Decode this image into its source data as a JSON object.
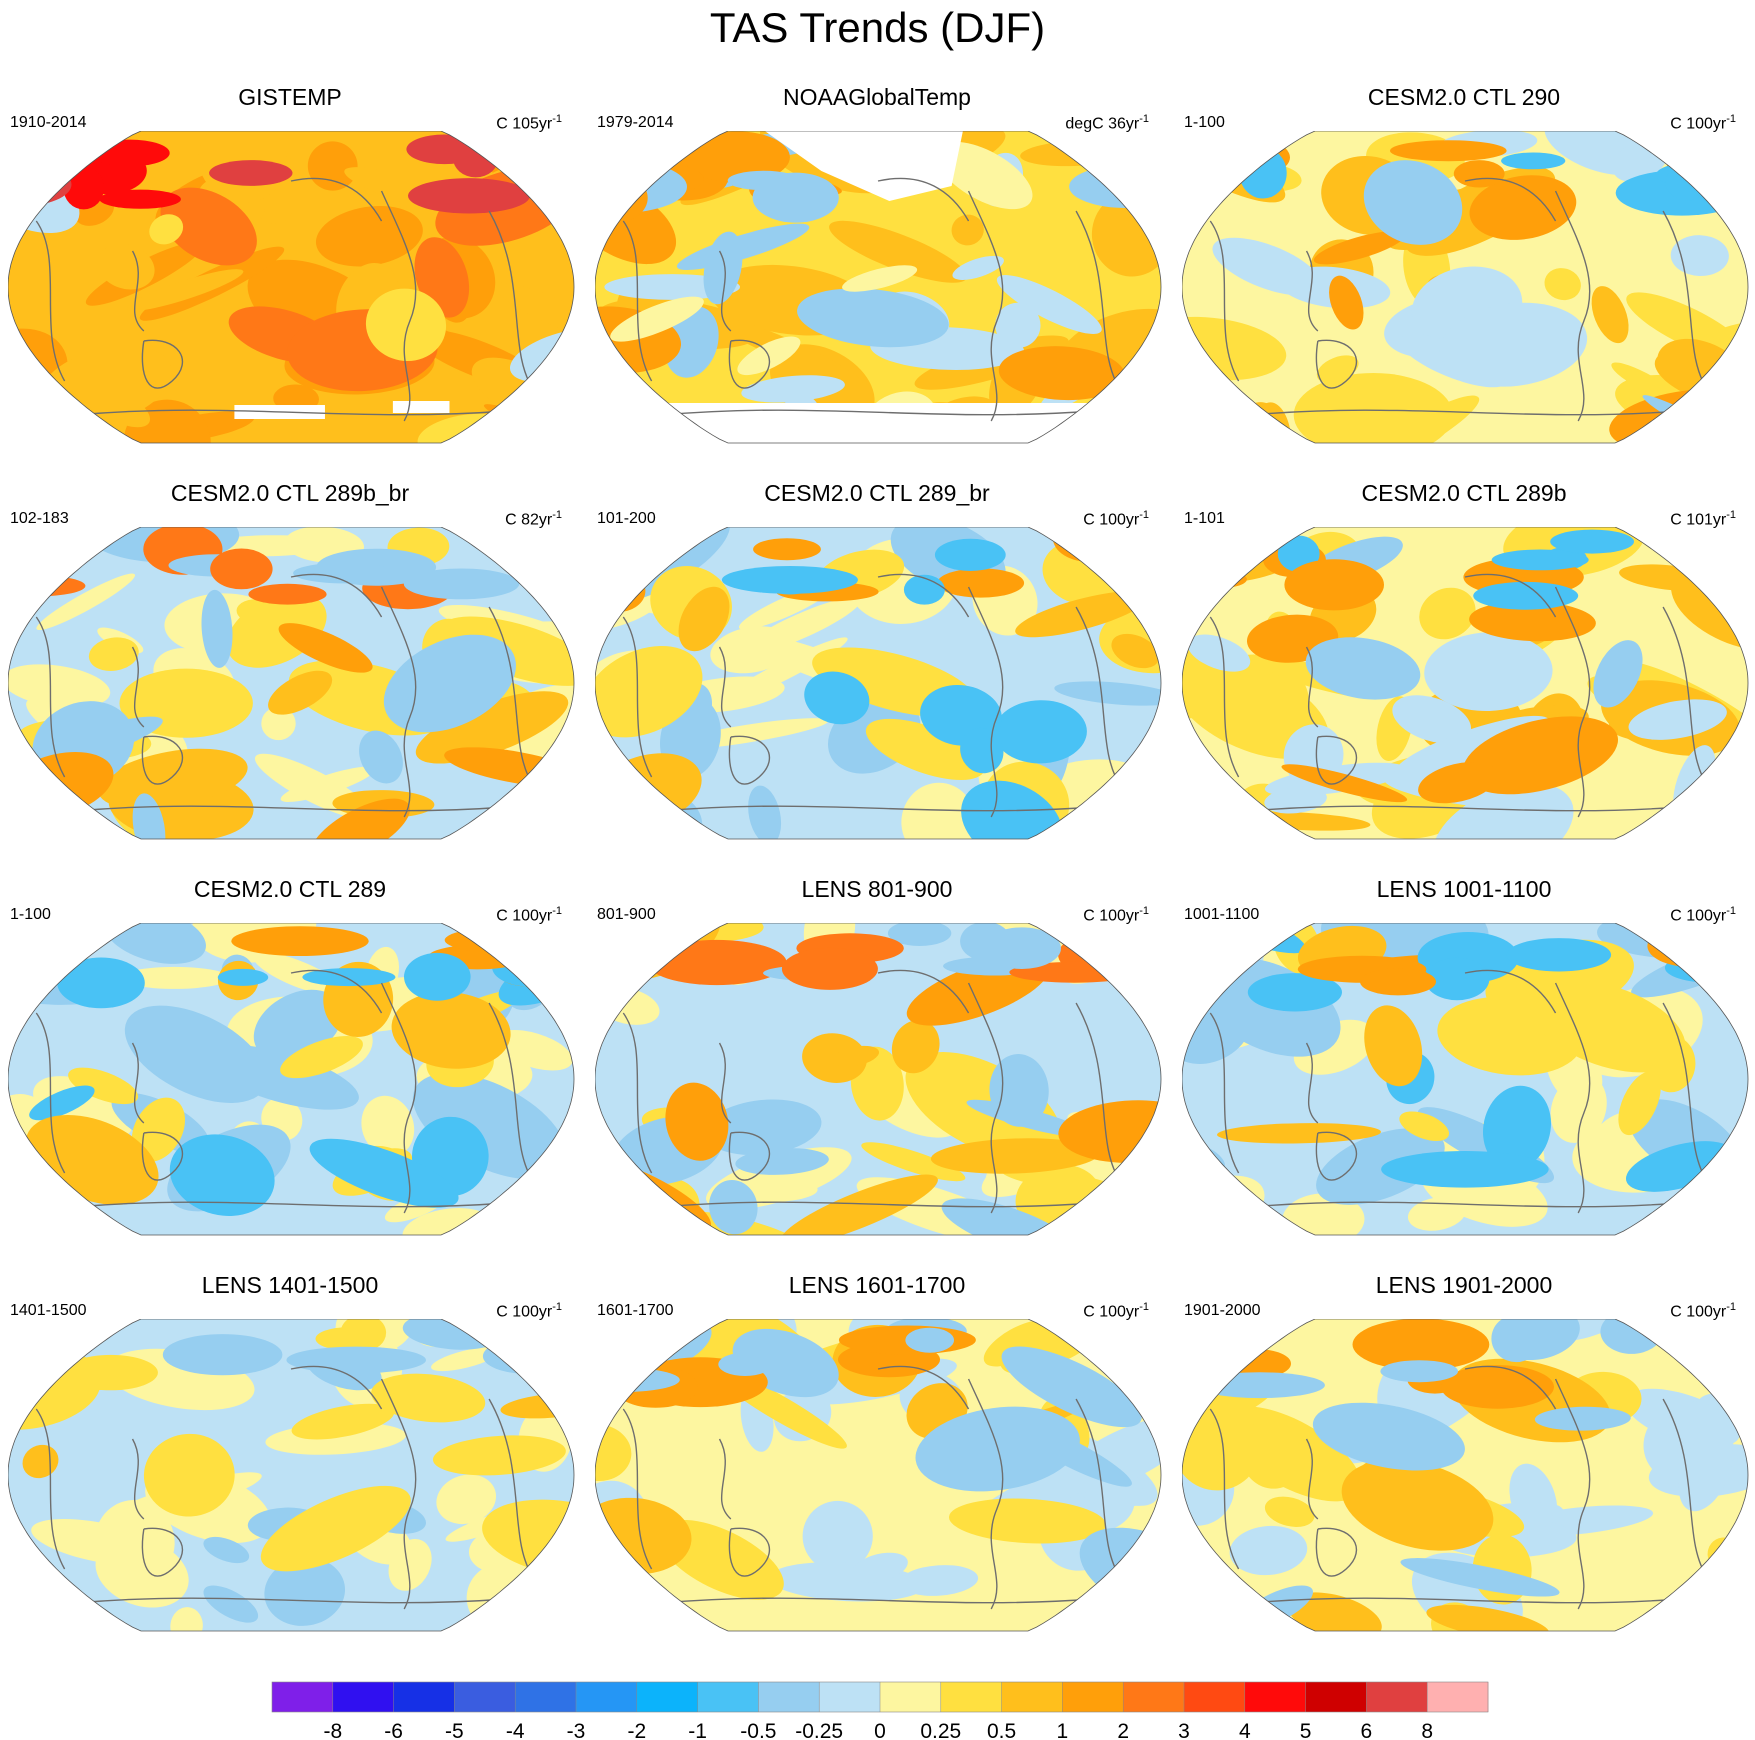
{
  "title": "TAS Trends (DJF)",
  "chart_data": {
    "type": "heatmap",
    "projection": "Robinson (Pacific-centered)",
    "title": "TAS Trends (DJF)",
    "panels": [
      {
        "title": "GISTEMP",
        "period": "1910-2014",
        "units_prefix": "C 105yr",
        "units_exp": "-1",
        "scheme": "warm",
        "missing_antarctic": true
      },
      {
        "title": "NOAAGlobalTemp",
        "period": "1979-2014",
        "units_prefix": "degC 36yr",
        "units_exp": "-1",
        "scheme": "noaa",
        "missing_arctic": true,
        "missing_antarctic": true
      },
      {
        "title": "CESM2.0 CTL 290",
        "period": "1-100",
        "units_prefix": "C 100yr",
        "units_exp": "-1",
        "scheme": "mixed_warm"
      },
      {
        "title": "CESM2.0 CTL 289b_br",
        "period": "102-183",
        "units_prefix": "C 82yr",
        "units_exp": "-1",
        "scheme": "mixed_warm_north"
      },
      {
        "title": "CESM2.0 CTL 289_br",
        "period": "101-200",
        "units_prefix": "C 100yr",
        "units_exp": "-1",
        "scheme": "mixed_cool"
      },
      {
        "title": "CESM2.0 CTL 289b",
        "period": "1-101",
        "units_prefix": "C 101yr",
        "units_exp": "-1",
        "scheme": "mixed_warm"
      },
      {
        "title": "CESM2.0 CTL 289",
        "period": "1-100",
        "units_prefix": "C 100yr",
        "units_exp": "-1",
        "scheme": "mixed_cool"
      },
      {
        "title": "LENS 801-900",
        "period": "801-900",
        "units_prefix": "C 100yr",
        "units_exp": "-1",
        "scheme": "mixed_warm_north"
      },
      {
        "title": "LENS 1001-1100",
        "period": "1001-1100",
        "units_prefix": "C 100yr",
        "units_exp": "-1",
        "scheme": "mixed_cool"
      },
      {
        "title": "LENS 1401-1500",
        "period": "1401-1500",
        "units_prefix": "C 100yr",
        "units_exp": "-1",
        "scheme": "mixed_neutral"
      },
      {
        "title": "LENS 1601-1700",
        "period": "1601-1700",
        "units_prefix": "C 100yr",
        "units_exp": "-1",
        "scheme": "mixed_neutral_warm"
      },
      {
        "title": "LENS 1901-2000",
        "period": "1901-2000",
        "units_prefix": "C 100yr",
        "units_exp": "-1",
        "scheme": "mixed_neutral_warm"
      }
    ],
    "colorbar": {
      "levels": [
        "-8",
        "-6",
        "-5",
        "-4",
        "-3",
        "-2",
        "-1",
        "-0.5",
        "-0.25",
        "0",
        "0.25",
        "0.5",
        "1",
        "2",
        "3",
        "4",
        "5",
        "6",
        "8"
      ],
      "colors": [
        "#7f1fe9",
        "#3010f0",
        "#1630e6",
        "#3a5de0",
        "#2f72e6",
        "#2596f5",
        "#0cb3fb",
        "#49c2f5",
        "#96cef0",
        "#bde1f5",
        "#fdf6a0",
        "#ffe040",
        "#ffbf1c",
        "#ff9f0a",
        "#ff7817",
        "#ff4a12",
        "#ff0a0a",
        "#cf0000",
        "#e04040",
        "#ffb0b0"
      ]
    }
  }
}
